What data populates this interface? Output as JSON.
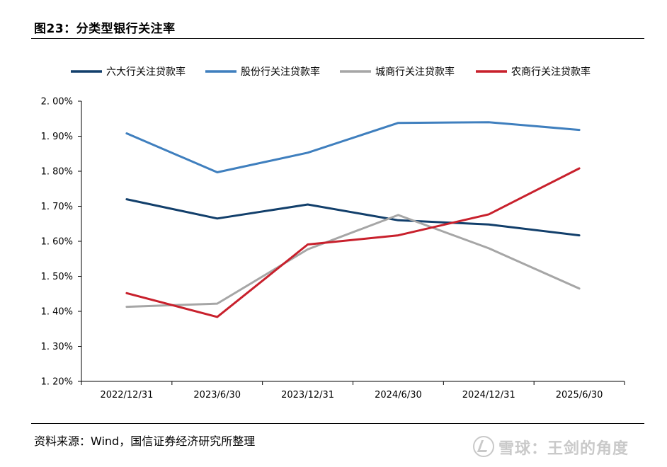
{
  "figure_title": "图23：分类型银行关注率",
  "source_note": "资料来源：Wind，国信证券经济研究所整理",
  "watermark_text": "雪球：王剑的角度",
  "chart_data": {
    "type": "line",
    "title": "",
    "xlabel": "",
    "ylabel": "",
    "categories": [
      "2022/12/31",
      "2023/6/30",
      "2023/12/31",
      "2024/6/30",
      "2024/12/31",
      "2025/6/30"
    ],
    "ylim": [
      1.2,
      2.0
    ],
    "y_unit": "%",
    "y_ticks": [
      2.0,
      1.9,
      1.8,
      1.7,
      1.6,
      1.5,
      1.4,
      1.3,
      1.2
    ],
    "y_tick_labels": [
      "2. 00%",
      "1. 90%",
      "1. 80%",
      "1. 70%",
      "1. 60%",
      "1. 50%",
      "1. 40%",
      "1. 30%",
      "1. 20%"
    ],
    "grid": false,
    "legend_position": "top",
    "series": [
      {
        "name": "六大行关注贷款率",
        "color": "#123f6b",
        "values": [
          1.72,
          1.665,
          1.705,
          1.66,
          1.648,
          1.617
        ]
      },
      {
        "name": "股份行关注贷款率",
        "color": "#3f7fbe",
        "values": [
          1.908,
          1.797,
          1.853,
          1.938,
          1.94,
          1.918
        ]
      },
      {
        "name": "城商行关注贷款率",
        "color": "#a6a6a6",
        "values": [
          1.413,
          1.422,
          1.577,
          1.675,
          1.58,
          1.465
        ]
      },
      {
        "name": "农商行关注贷款率",
        "color": "#c8202c",
        "values": [
          1.452,
          1.384,
          1.591,
          1.617,
          1.677,
          1.808
        ]
      }
    ]
  }
}
